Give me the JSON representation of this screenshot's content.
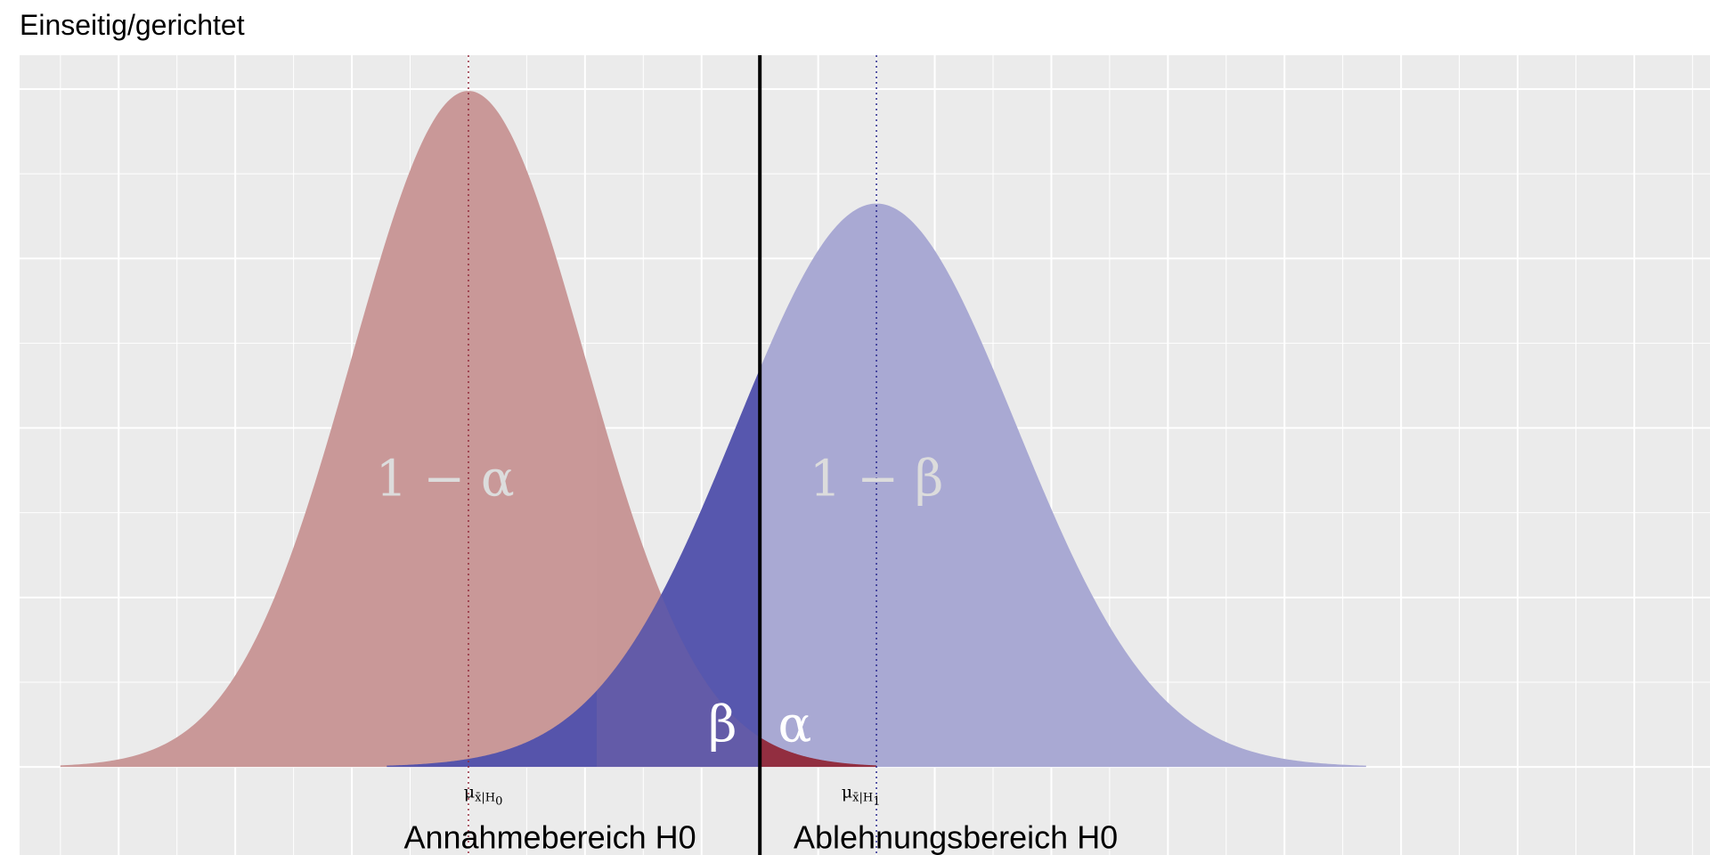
{
  "title": "Einseitig/gerichtet",
  "chart_data": {
    "type": "area",
    "title": "Einseitig/gerichtet",
    "xlabel": "",
    "ylabel": "",
    "grid": true,
    "x_range": [
      -3.85,
      10.65
    ],
    "y_range": [
      -0.052,
      0.42
    ],
    "critical_value": 2.5,
    "series": [
      {
        "dist": "H0",
        "mean": 0,
        "sd": 1,
        "color": "#c99898",
        "tail_color": "#922a3b"
      },
      {
        "dist": "H1",
        "mean": 3.5,
        "sd": 1.2,
        "color": "#a9a9d3",
        "beta_color": "#5252ab"
      }
    ],
    "labels": {
      "one_minus_alpha": "1 − α",
      "one_minus_beta": "1 − β",
      "beta": "β",
      "alpha": "α",
      "accept_region": "Annahmebereich H0",
      "reject_region": "Ablehnungsbereich H0",
      "mu_symbol": "μ",
      "mu_h0_sub": "x̄|H",
      "mu_h0_subsub": "0",
      "mu_h1_sub": "x̄|H",
      "mu_h1_subsub": "1"
    },
    "colors": {
      "panel_bg": "#ebebeb",
      "grid": "#ffffff",
      "mean_h0_line": "#922a3b",
      "mean_h1_line": "#2a2a8f",
      "critical_line": "#000000",
      "big_label": "#dcdcdc",
      "small_label": "#ffffff"
    }
  }
}
